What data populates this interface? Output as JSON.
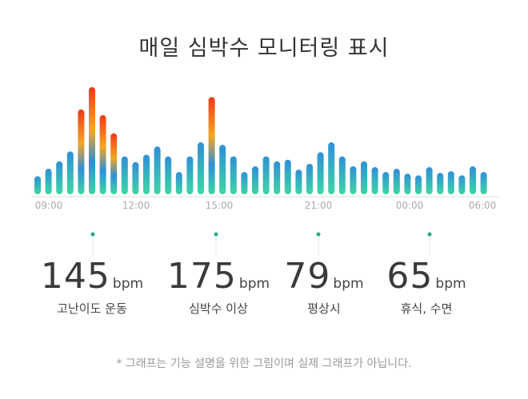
{
  "title": "매일 심박수 모니터링 표시",
  "chart_data": {
    "type": "bar",
    "title": "매일 심박수 모니터링 표시",
    "x_tick_labels": [
      "09:00",
      "12:00",
      "15:00",
      "21:00",
      "00:00",
      "06:00"
    ],
    "values": [
      22,
      31,
      40,
      52,
      103,
      130,
      96,
      74,
      46,
      39,
      48,
      58,
      46,
      27,
      46,
      63,
      118,
      60,
      46,
      27,
      34,
      46,
      40,
      42,
      30,
      37,
      51,
      63,
      46,
      34,
      40,
      33,
      27,
      31,
      25,
      23,
      33,
      26,
      28,
      23,
      34,
      27
    ],
    "highlight_indices": [
      4,
      5,
      6,
      7,
      16
    ],
    "colors": {
      "base_top": "#2f8fd8",
      "base_bottom": "#3ed6a4",
      "peak_top": "#f03a17",
      "peak_mid": "#f5a623"
    }
  },
  "stats": [
    {
      "value": "145",
      "unit": "bpm",
      "label": "고난이도 운동"
    },
    {
      "value": "175",
      "unit": "bpm",
      "label": "심박수 이상"
    },
    {
      "value": "79",
      "unit": "bpm",
      "label": "평상시"
    },
    {
      "value": "65",
      "unit": "bpm",
      "label": "휴식, 수면"
    }
  ],
  "footnote": "* 그래프는 기능 설명을 위한 그림이며 실제 그래프가 아닙니다."
}
